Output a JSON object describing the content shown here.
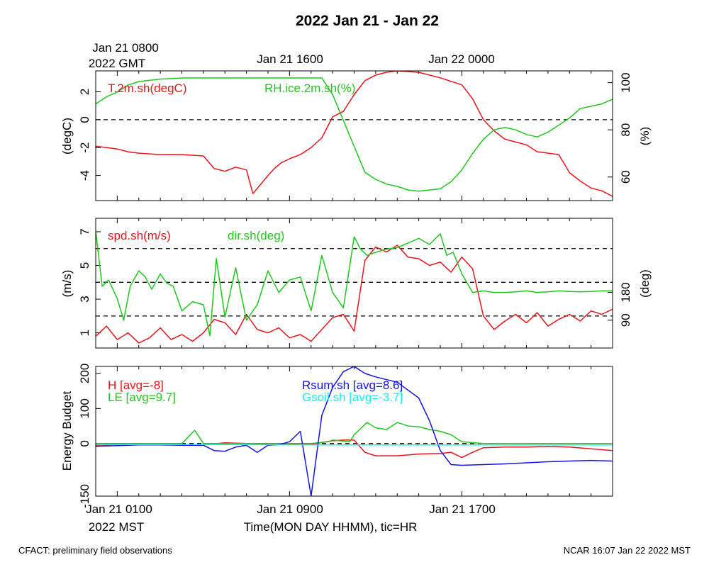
{
  "figure": {
    "title": "2022 Jan 21 - Jan 22",
    "top_time_labels": [
      "Jan 21 0800",
      "2022 GMT",
      "Jan 21 1600",
      "Jan 22 0000"
    ],
    "bottom_time_labels": [
      "Jan 21 0100",
      "2022 MST",
      "Jan 21 0900",
      "Jan 21 1700"
    ],
    "xlabel": "Time(MON DAY HHMM), tic=HR",
    "footer_left": "CFACT: preliminary field observations",
    "footer_right": "NCAR 16:07 Jan 22 2022 MST",
    "colors": {
      "red": "#e8141a",
      "green": "#1ec81e",
      "blue": "#1414e6",
      "cyan": "#14f0f0",
      "black": "#000000"
    }
  },
  "chart_data": [
    {
      "type": "line",
      "title": "",
      "x_unit": "hours since Jan 21 0000 MST",
      "xlim": [
        0,
        24
      ],
      "ylabel_left": "(degC)",
      "ylabel_right": "(%)",
      "ylim_left": [
        -5.8,
        3.5
      ],
      "ylim_right": [
        50,
        105
      ],
      "left_ticks": [
        "2",
        "0",
        "-2",
        "-4"
      ],
      "left_tick_values": [
        2,
        0,
        -2,
        -4
      ],
      "right_ticks": [
        "100",
        "80",
        "60"
      ],
      "right_tick_values": [
        100,
        80,
        60
      ],
      "hlines_left": [
        0
      ],
      "series": [
        {
          "name": "T.2m.sh(degC)",
          "axis": "left",
          "color": "#e8141a",
          "x": [
            0,
            0.5,
            1,
            1.5,
            2,
            3,
            4,
            5,
            5.5,
            6,
            6.5,
            7,
            7.3,
            8,
            8.3,
            8.6,
            9,
            9.5,
            10,
            10.5,
            11,
            11.5,
            12,
            12.5,
            13,
            13.5,
            14,
            15,
            16,
            17,
            17.5,
            18,
            18.5,
            19,
            19.5,
            20,
            20.5,
            21,
            21.5,
            22,
            22.5,
            23,
            23.5,
            24
          ],
          "y": [
            -1.9,
            -2.0,
            -2.1,
            -2.3,
            -2.4,
            -2.5,
            -2.5,
            -2.6,
            -3.5,
            -3.7,
            -3.4,
            -3.6,
            -5.3,
            -4.0,
            -3.5,
            -3.1,
            -2.8,
            -2.5,
            -2.0,
            -1.3,
            0.2,
            0.6,
            1.8,
            2.8,
            3.2,
            3.4,
            3.5,
            3.4,
            3.0,
            2.5,
            1.5,
            0.0,
            -0.8,
            -1.4,
            -1.6,
            -1.8,
            -2.3,
            -2.4,
            -2.5,
            -3.8,
            -4.4,
            -4.9,
            -5.1,
            -5.5
          ]
        },
        {
          "name": "RH.ice.2m.sh(%)",
          "axis": "right",
          "color": "#1ec81e",
          "x": [
            0,
            0.5,
            1,
            1.5,
            2,
            3,
            4,
            5,
            6,
            7,
            8,
            9,
            10.5,
            11,
            11.5,
            12,
            12.5,
            13,
            13.5,
            14,
            14.5,
            15,
            16,
            16.5,
            17,
            17.5,
            18,
            18.5,
            19,
            19.5,
            20,
            20.5,
            21,
            21.5,
            22,
            22.5,
            23,
            23.5,
            24
          ],
          "y": [
            91,
            94,
            96,
            99,
            100.5,
            101.5,
            102,
            102,
            102,
            102,
            102,
            102,
            102,
            95,
            84,
            73,
            62,
            59,
            57,
            56,
            54.5,
            54,
            55,
            58,
            63,
            70,
            76,
            80,
            81,
            80,
            78,
            77,
            79,
            82,
            85,
            89,
            90,
            91,
            93
          ]
        }
      ],
      "legend": [
        "T.2m.sh(degC)",
        "RH.ice.2m.sh(%)"
      ]
    },
    {
      "type": "line",
      "title": "",
      "x_unit": "hours since Jan 21 0000 MST",
      "xlim": [
        0,
        24
      ],
      "ylabel_left": "(m/s)",
      "ylabel_right": "(deg)",
      "ylim_left": [
        0.1,
        7.8
      ],
      "ylim_right": [
        0,
        420
      ],
      "left_ticks": [
        "7",
        "5",
        "3",
        "1"
      ],
      "left_tick_values": [
        7,
        5,
        3,
        1
      ],
      "right_ticks": [
        "180",
        "90"
      ],
      "right_tick_values": [
        180,
        90
      ],
      "hlines_left": [
        6,
        4,
        2
      ],
      "series": [
        {
          "name": "spd.sh(m/s)",
          "axis": "left",
          "color": "#e8141a",
          "x": [
            0,
            0.5,
            1,
            1.5,
            2,
            2.5,
            3,
            3.5,
            4,
            4.5,
            5,
            5.5,
            6,
            6.5,
            7,
            7.5,
            8,
            8.5,
            9,
            9.5,
            10,
            10.5,
            11,
            11.5,
            12,
            12.5,
            13,
            13.5,
            14,
            14.5,
            15,
            15.5,
            16,
            16.5,
            17,
            17.5,
            18,
            18.5,
            19,
            19.5,
            20,
            20.5,
            21,
            21.5,
            22,
            22.5,
            23,
            23.5,
            24
          ],
          "y": [
            0.8,
            1.4,
            0.6,
            1.0,
            0.4,
            0.7,
            1.3,
            0.6,
            0.9,
            0.5,
            1.0,
            1.8,
            1.6,
            0.9,
            2.1,
            1.2,
            1.0,
            1.3,
            0.7,
            0.9,
            0.5,
            1.2,
            1.9,
            2.1,
            1.1,
            5.3,
            6.1,
            5.8,
            6.2,
            5.5,
            5.4,
            5.0,
            5.2,
            4.6,
            5.5,
            4.8,
            2.0,
            1.2,
            1.7,
            2.1,
            1.6,
            2.2,
            1.4,
            1.8,
            2.1,
            1.7,
            2.3,
            2.1,
            2.4
          ]
        },
        {
          "name": "dir.sh(deg)",
          "axis": "right",
          "color": "#1ec81e",
          "x": [
            0,
            0.3,
            0.6,
            1,
            1.3,
            1.6,
            2,
            2.3,
            2.6,
            3,
            3.3,
            3.6,
            4,
            4.5,
            5,
            5.3,
            5.6,
            6,
            6.5,
            7,
            7.5,
            8,
            8.5,
            9,
            9.5,
            10,
            10.5,
            11,
            11.5,
            12,
            12.3,
            12.6,
            13,
            13.5,
            14,
            14.5,
            15,
            15.5,
            16,
            16.3,
            16.6,
            17,
            17.5,
            18,
            18.5,
            19,
            19.5,
            20,
            20.5,
            21,
            21.5,
            22,
            22.5,
            23,
            23.5,
            24
          ],
          "y": [
            380,
            200,
            220,
            160,
            90,
            200,
            250,
            230,
            190,
            240,
            210,
            200,
            120,
            150,
            140,
            40,
            290,
            100,
            260,
            90,
            140,
            250,
            180,
            220,
            230,
            120,
            300,
            180,
            130,
            360,
            320,
            300,
            310,
            320,
            325,
            340,
            355,
            335,
            370,
            300,
            310,
            240,
            180,
            185,
            180,
            180,
            182,
            185,
            180,
            182,
            185,
            183,
            182,
            183,
            185,
            185
          ]
        }
      ],
      "legend": [
        "spd.sh(m/s)",
        "dir.sh(deg)"
      ]
    },
    {
      "type": "line",
      "title": "",
      "x_unit": "hours since Jan 21 0000 MST",
      "xlim": [
        0,
        24
      ],
      "ylabel_left": "Energy Budget",
      "ylim_left": [
        -150,
        220
      ],
      "left_ticks": [
        "200",
        "100",
        "0",
        "-150"
      ],
      "left_tick_values": [
        200,
        100,
        0,
        -150
      ],
      "hlines_left": [
        0
      ],
      "series": [
        {
          "name": "H",
          "avg": "-8",
          "color": "#e8141a",
          "x": [
            0,
            1,
            2,
            3,
            4,
            5,
            6,
            7,
            8,
            9,
            10,
            11,
            11.5,
            12,
            12.5,
            13,
            14,
            15,
            16,
            16.5,
            17,
            17.5,
            18,
            19,
            20,
            21,
            22,
            23,
            24
          ],
          "y": [
            -5,
            -3,
            -2,
            -3,
            -3,
            -4,
            2,
            0,
            -2,
            -3,
            -2,
            8,
            10,
            10,
            -25,
            -35,
            -35,
            -30,
            -28,
            -25,
            -40,
            -25,
            -12,
            -10,
            -10,
            -8,
            -10,
            -15,
            -20
          ]
        },
        {
          "name": "LE",
          "avg": "9.7",
          "color": "#1ec81e",
          "x": [
            0,
            1,
            2,
            3,
            4,
            4.6,
            5,
            6,
            7,
            8,
            9,
            10,
            10.8,
            11,
            11.8,
            12,
            12.6,
            13,
            13.5,
            14,
            14.5,
            15,
            15.5,
            16,
            16.5,
            17,
            18,
            19,
            20,
            21,
            22,
            23,
            24
          ],
          "y": [
            0,
            0,
            0,
            0,
            0,
            38,
            0,
            0,
            0,
            0,
            0,
            0,
            5,
            10,
            5,
            25,
            60,
            45,
            40,
            60,
            50,
            48,
            40,
            35,
            25,
            5,
            0,
            0,
            0,
            0,
            0,
            0,
            0
          ]
        },
        {
          "name": "Rsum.sh",
          "avg": "8.6",
          "color": "#1414e6",
          "x": [
            0,
            1,
            2,
            3,
            4,
            5,
            5.5,
            6,
            6.5,
            7,
            7.5,
            8,
            8.5,
            9,
            9.5,
            10,
            10.5,
            11,
            11.5,
            12,
            12.5,
            13,
            14,
            15,
            15.5,
            16,
            16.5,
            17,
            18,
            19,
            20,
            21,
            22,
            23,
            24
          ],
          "y": [
            -8,
            -6,
            -4,
            -4,
            -5,
            -5,
            -20,
            -22,
            -10,
            -5,
            -25,
            -5,
            -3,
            5,
            35,
            -150,
            80,
            160,
            205,
            220,
            200,
            190,
            175,
            130,
            65,
            -20,
            -60,
            -62,
            -60,
            -58,
            -55,
            -52,
            -50,
            -48,
            -50
          ]
        },
        {
          "name": "Gsoil.sh",
          "avg": "-3.7",
          "color": "#14f0f0",
          "x": [
            0,
            6,
            12,
            18,
            24
          ],
          "y": [
            -3,
            -3,
            -4,
            -4,
            -4
          ]
        }
      ],
      "legend": [
        "H [avg=-8]",
        "LE [avg=9.7]",
        "Rsum.sh [avg=8.6]",
        "Gsoil.sh [avg=-3.7]"
      ]
    }
  ]
}
